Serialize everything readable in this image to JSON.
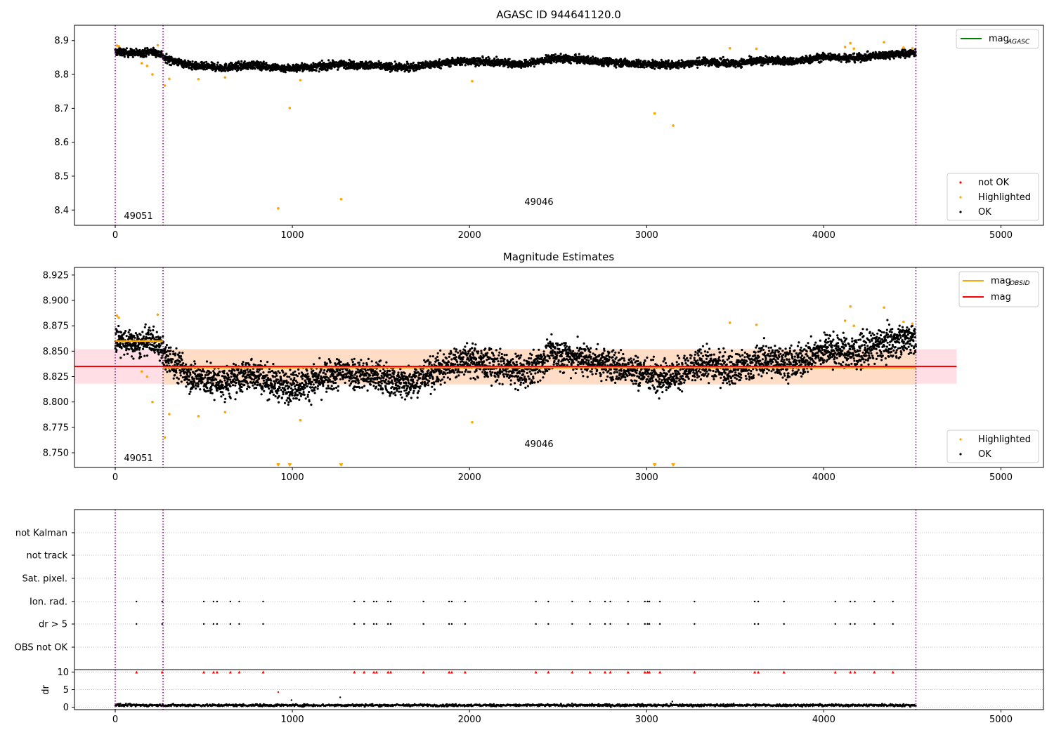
{
  "colors": {
    "ok": "#000000",
    "highlighted": "#ffa500",
    "not_ok": "#ff0000",
    "mag_agasc": "#008000",
    "mag_obsid": "#ffa500",
    "mag": "#ff0000",
    "obs_boundary": "#800080",
    "band_mag": "#ffc0cb",
    "band_obsid": "#ffdab9"
  },
  "chart_data": [
    {
      "type": "scatter",
      "title": "AGASC ID 944641120.0",
      "xlim": [
        -230,
        5240
      ],
      "ylim": [
        8.355,
        8.945
      ],
      "xticks": [
        0,
        1000,
        2000,
        3000,
        4000,
        5000
      ],
      "yticks": [
        8.4,
        8.5,
        8.6,
        8.7,
        8.8,
        8.9
      ],
      "grid": false,
      "legends": [
        {
          "placement": "top-right",
          "entries": [
            {
              "label": "mag",
              "sub": "AGASC",
              "kind": "line",
              "color_key": "mag_agasc"
            }
          ]
        },
        {
          "placement": "bottom-right",
          "entries": [
            {
              "label": "not OK",
              "kind": "dot",
              "color_key": "not_ok"
            },
            {
              "label": "Highlighted",
              "kind": "dot",
              "color_key": "highlighted"
            },
            {
              "label": "OK",
              "kind": "dot",
              "color_key": "ok"
            }
          ]
        }
      ],
      "obs_boundaries": [
        0,
        270,
        4520
      ],
      "obs_labels": [
        {
          "text": "49051",
          "x": 130,
          "y": 8.38
        },
        {
          "text": "49046",
          "x": 2400,
          "y": 8.42
        }
      ],
      "ok_segments": [
        {
          "x": [
            0,
            270
          ],
          "base": [
            8.867,
            8.864,
            8.862,
            8.868,
            8.858
          ],
          "noise": 0.008
        },
        {
          "x": [
            270,
            4520
          ],
          "base": [
            8.848,
            8.825,
            8.82,
            8.828,
            8.818,
            8.822,
            8.83,
            8.826,
            8.82,
            8.83,
            8.84,
            8.836,
            8.83,
            8.848,
            8.842,
            8.836,
            8.83,
            8.828,
            8.838,
            8.832,
            8.842,
            8.838,
            8.852,
            8.848,
            8.858,
            8.864
          ],
          "noise": 0.008
        }
      ],
      "highlighted_points": {
        "x": [
          10,
          20,
          150,
          180,
          210,
          240,
          280,
          305,
          470,
          620,
          920,
          985,
          1045,
          1275,
          2015,
          3045,
          3150,
          3470,
          3620,
          4120,
          4150,
          4170,
          4340,
          4450,
          4500
        ],
        "y": [
          8.885,
          8.883,
          8.833,
          8.825,
          8.8,
          8.886,
          8.767,
          8.787,
          8.786,
          8.791,
          8.405,
          8.701,
          8.783,
          8.432,
          8.78,
          8.685,
          8.649,
          8.877,
          8.876,
          8.881,
          8.892,
          8.876,
          8.895,
          8.879,
          8.877
        ]
      }
    },
    {
      "type": "scatter",
      "title": "Magnitude Estimates",
      "xlim": [
        -230,
        5240
      ],
      "ylim": [
        8.7355,
        8.9325
      ],
      "xticks": [
        0,
        1000,
        2000,
        3000,
        4000,
        5000
      ],
      "yticks": [
        8.75,
        8.775,
        8.8,
        8.825,
        8.85,
        8.875,
        8.9,
        8.925
      ],
      "ytick_labels": [
        "8.750",
        "8.775",
        "8.800",
        "8.825",
        "8.850",
        "8.875",
        "8.900",
        "8.925"
      ],
      "grid": false,
      "legends": [
        {
          "placement": "top-right",
          "entries": [
            {
              "label": "mag",
              "sub": "OBSID",
              "kind": "line",
              "color_key": "mag_obsid"
            },
            {
              "label": "mag",
              "kind": "line",
              "color_key": "mag"
            }
          ]
        },
        {
          "placement": "bottom-right",
          "entries": [
            {
              "label": "Highlighted",
              "kind": "dot",
              "color_key": "highlighted"
            },
            {
              "label": "OK",
              "kind": "dot",
              "color_key": "ok"
            }
          ]
        }
      ],
      "mag_line": {
        "y": 8.835,
        "x": [
          -230,
          4750
        ],
        "band": [
          8.818,
          8.852
        ]
      },
      "obsid_lines": [
        {
          "x": [
            0,
            270
          ],
          "y": 8.86
        },
        {
          "x": [
            270,
            4520
          ],
          "y": 8.834,
          "band": [
            8.817,
            8.852
          ]
        }
      ],
      "obs_boundaries": [
        0,
        270,
        4520
      ],
      "obs_labels": [
        {
          "text": "49051",
          "x": 130,
          "y": 8.7435
        },
        {
          "text": "49046",
          "x": 2400,
          "y": 8.7575
        }
      ],
      "ok_segments": [
        {
          "x": [
            0,
            270
          ],
          "base": [
            8.862,
            8.858,
            8.856,
            8.862,
            8.852
          ],
          "noise": 0.009
        },
        {
          "x": [
            270,
            4520
          ],
          "base": [
            8.845,
            8.825,
            8.818,
            8.828,
            8.815,
            8.82,
            8.83,
            8.826,
            8.818,
            8.83,
            8.842,
            8.836,
            8.828,
            8.848,
            8.842,
            8.836,
            8.828,
            8.826,
            8.838,
            8.832,
            8.842,
            8.838,
            8.852,
            8.848,
            8.858,
            8.864
          ],
          "noise": 0.011
        }
      ],
      "highlighted_points": {
        "x": [
          10,
          20,
          150,
          180,
          210,
          240,
          280,
          305,
          470,
          620,
          1045,
          2015,
          3470,
          3620,
          4120,
          4150,
          4170,
          4340,
          4450,
          4500
        ],
        "y": [
          8.885,
          8.883,
          8.83,
          8.825,
          8.8,
          8.886,
          8.765,
          8.788,
          8.786,
          8.79,
          8.782,
          8.78,
          8.878,
          8.876,
          8.88,
          8.894,
          8.875,
          8.893,
          8.879,
          8.877
        ]
      },
      "out_of_range_markers": {
        "x": [
          920,
          985,
          1275,
          3045,
          3150
        ]
      }
    },
    {
      "type": "scatter",
      "title": "",
      "xlim": [
        -230,
        5240
      ],
      "xticks": [
        0,
        1000,
        2000,
        3000,
        4000,
        5000
      ],
      "flag_rows": [
        "not Kalman",
        "not track",
        "Sat. pixel.",
        "Ion. rad.",
        "dr > 5",
        "OBS not OK"
      ],
      "flag_x": [
        120,
        265,
        500,
        555,
        575,
        650,
        700,
        835,
        1350,
        1405,
        1460,
        1475,
        1540,
        1555,
        1740,
        1885,
        1900,
        1975,
        2375,
        2445,
        2580,
        2680,
        2765,
        2795,
        2895,
        2990,
        3005,
        3015,
        3075,
        3270,
        3610,
        3630,
        3775,
        4065,
        4150,
        4175,
        4285,
        4390
      ],
      "dr": {
        "ylim": [
          -0.7,
          10.7
        ],
        "yticks": [
          0,
          5,
          10
        ],
        "ylabel": "dr",
        "clipped_value": 10,
        "outliers": {
          "x": [
            920,
            995,
            1270,
            3145
          ],
          "y": [
            4.3,
            2.0,
            2.8,
            1.6
          ]
        }
      },
      "obs_boundaries": [
        0,
        270,
        4520
      ]
    }
  ]
}
